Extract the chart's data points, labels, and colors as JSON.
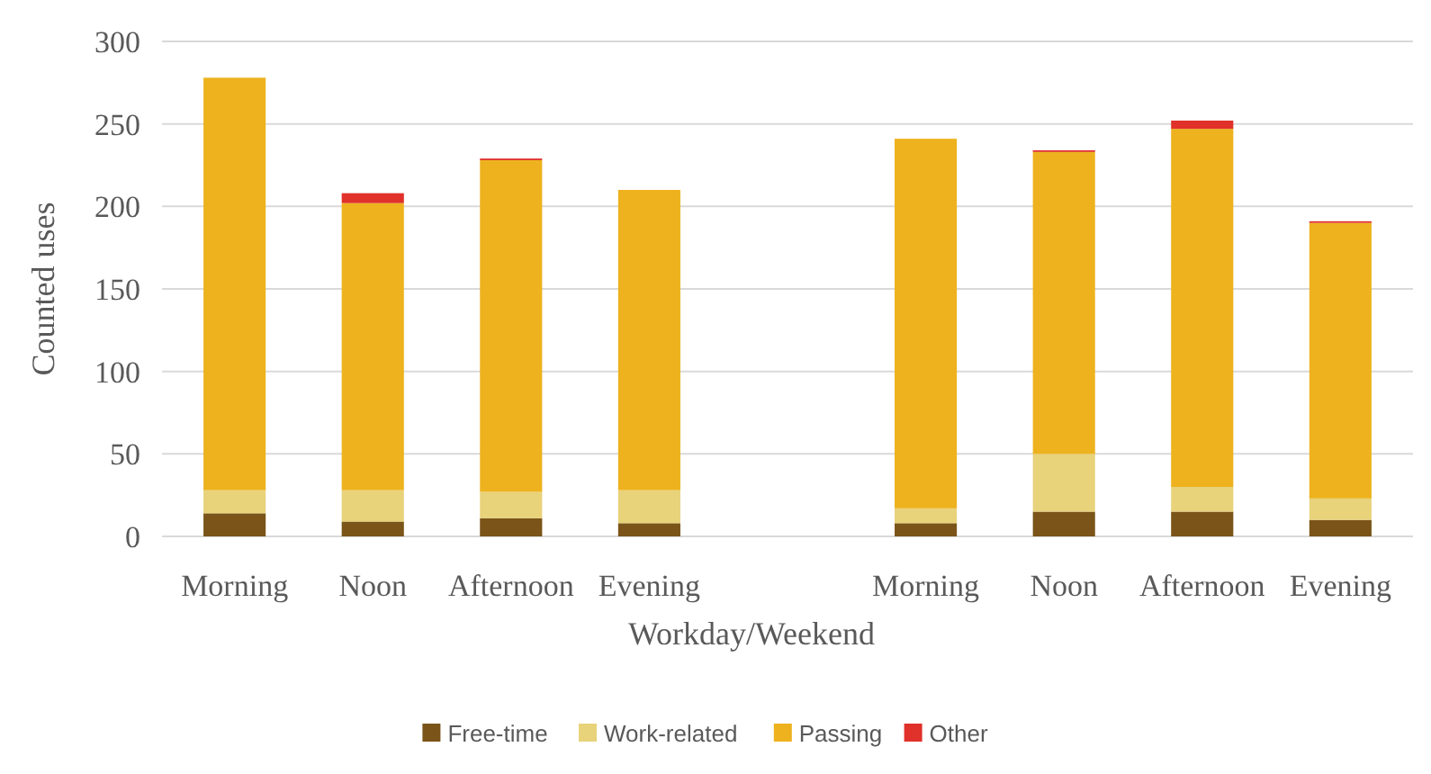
{
  "chart_data": {
    "type": "bar",
    "stacked": true,
    "xlabel": "Workday/Weekend",
    "ylabel": "Counted uses",
    "categories": [
      "Morning",
      "Noon",
      "Afternoon",
      "Evening",
      null,
      "Morning",
      "Noon",
      "Afternoon",
      "Evening"
    ],
    "series": [
      {
        "name": "Free-time",
        "color": "#7a5418",
        "values": [
          14,
          9,
          11,
          8,
          null,
          8,
          15,
          15,
          10
        ]
      },
      {
        "name": "Work-related",
        "color": "#e8d27a",
        "values": [
          14,
          19,
          16,
          20,
          null,
          9,
          35,
          15,
          13
        ]
      },
      {
        "name": "Passing",
        "color": "#edb21e",
        "values": [
          250,
          174,
          201,
          182,
          null,
          224,
          183,
          217,
          167
        ]
      },
      {
        "name": "Other",
        "color": "#e0312a",
        "values": [
          0,
          6,
          1,
          0,
          null,
          0,
          1,
          5,
          1
        ]
      }
    ],
    "ylim": [
      0,
      300
    ],
    "yticks": [
      0,
      50,
      100,
      150,
      200,
      250,
      300
    ],
    "grid": "y",
    "legend": "bottom"
  }
}
